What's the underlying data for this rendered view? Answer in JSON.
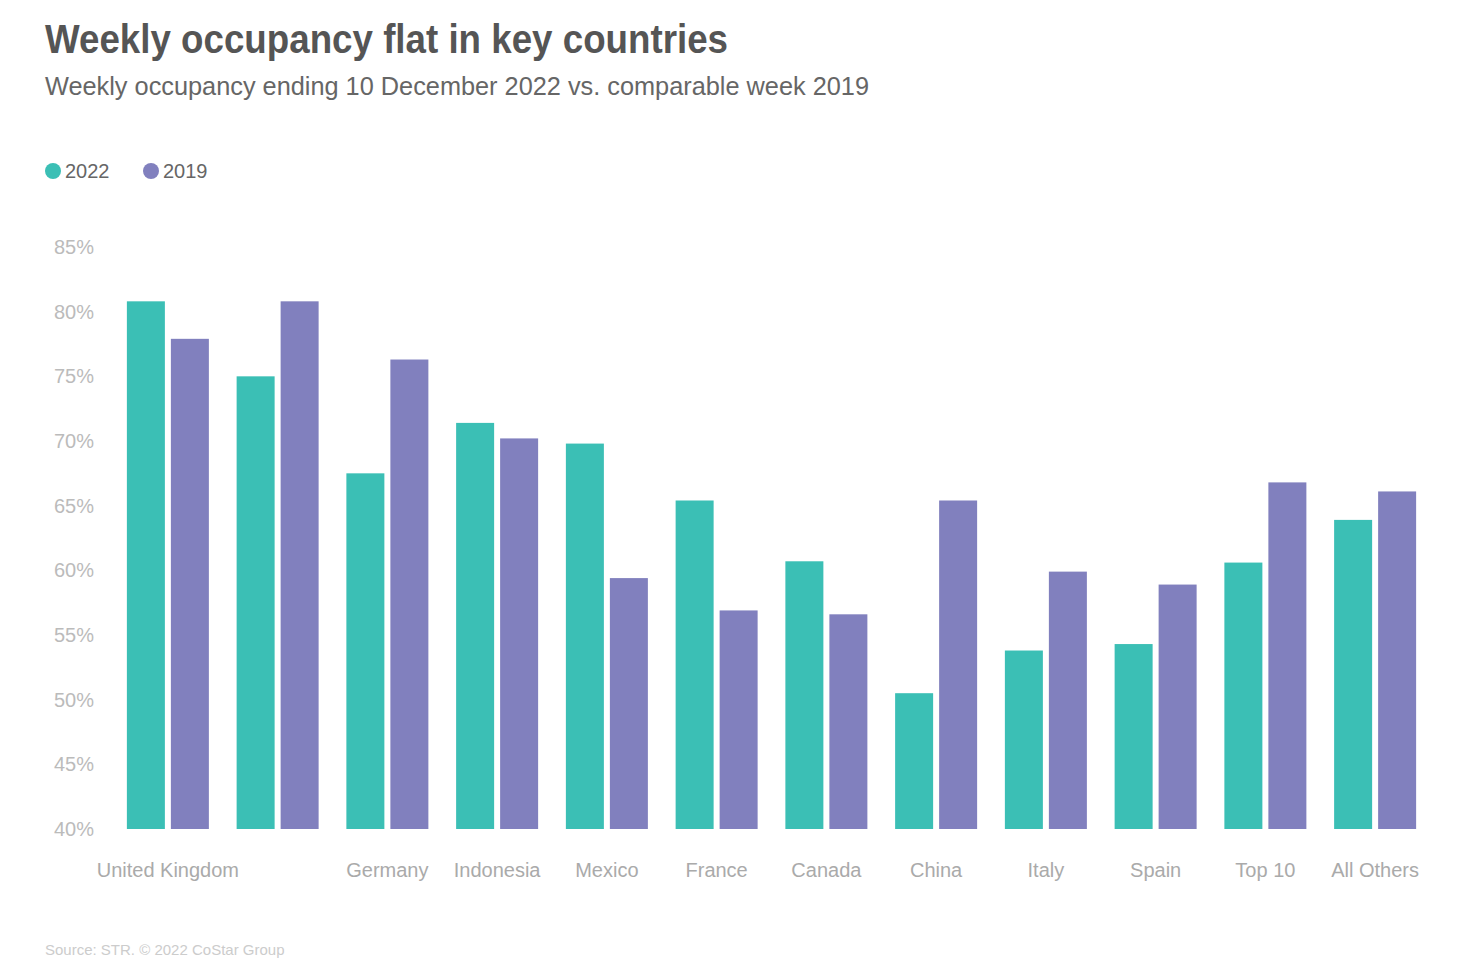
{
  "chart_data": {
    "type": "bar",
    "title": "Weekly occupancy flat in key countries",
    "subtitle": "Weekly occupancy ending 10 December 2022 vs. comparable week 2019",
    "source": "Source: STR. © 2022 CoStar Group",
    "categories": [
      "United Kingdom",
      null,
      "Germany",
      "Indonesia",
      "Mexico",
      "France",
      "Canada",
      "China",
      "Italy",
      "Spain",
      "Top 10",
      "All Others"
    ],
    "series": [
      {
        "name": "2022",
        "color": "#3bbfb5",
        "values": [
          80.8,
          75.0,
          67.5,
          71.4,
          69.8,
          65.4,
          60.7,
          50.5,
          53.8,
          54.3,
          60.6,
          63.9
        ]
      },
      {
        "name": "2019",
        "color": "#8180be",
        "values": [
          77.9,
          80.8,
          76.3,
          70.2,
          59.4,
          56.9,
          56.6,
          65.4,
          59.9,
          58.9,
          66.8,
          66.1
        ]
      }
    ],
    "ylim": [
      40,
      85
    ],
    "yticks": [
      {
        "value": 40,
        "label": "40%"
      },
      {
        "value": 45,
        "label": "45%"
      },
      {
        "value": 50,
        "label": "50%"
      },
      {
        "value": 55,
        "label": "55%"
      },
      {
        "value": 60,
        "label": "60%"
      },
      {
        "value": 65,
        "label": "65%"
      },
      {
        "value": 70,
        "label": "70%"
      },
      {
        "value": 75,
        "label": "75%"
      },
      {
        "value": 80,
        "label": "80%"
      },
      {
        "value": 85,
        "label": "85%"
      }
    ],
    "grid": false,
    "legend": "top-left"
  }
}
